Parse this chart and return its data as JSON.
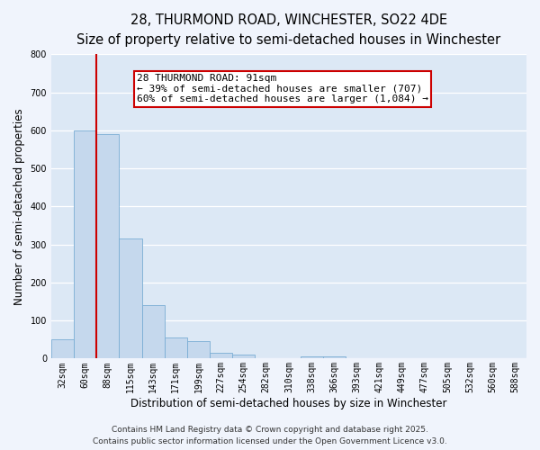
{
  "title_line1": "28, THURMOND ROAD, WINCHESTER, SO22 4DE",
  "title_line2": "Size of property relative to semi-detached houses in Winchester",
  "xlabel": "Distribution of semi-detached houses by size in Winchester",
  "ylabel": "Number of semi-detached properties",
  "bar_labels": [
    "32sqm",
    "60sqm",
    "88sqm",
    "115sqm",
    "143sqm",
    "171sqm",
    "199sqm",
    "227sqm",
    "254sqm",
    "282sqm",
    "310sqm",
    "338sqm",
    "366sqm",
    "393sqm",
    "421sqm",
    "449sqm",
    "477sqm",
    "505sqm",
    "532sqm",
    "560sqm",
    "588sqm"
  ],
  "bar_values": [
    50,
    600,
    590,
    315,
    140,
    55,
    45,
    15,
    10,
    0,
    0,
    5,
    5,
    0,
    0,
    0,
    0,
    0,
    0,
    0,
    0
  ],
  "bar_color": "#c5d8ed",
  "bar_edge_color": "#7aadd4",
  "vline_color": "#cc0000",
  "annotation_box_text": "28 THURMOND ROAD: 91sqm\n← 39% of semi-detached houses are smaller (707)\n60% of semi-detached houses are larger (1,084) →",
  "annotation_box_edgecolor": "#cc0000",
  "annotation_box_facecolor": "#ffffff",
  "ylim": [
    0,
    800
  ],
  "yticks": [
    0,
    100,
    200,
    300,
    400,
    500,
    600,
    700,
    800
  ],
  "plot_bg_color": "#dce8f5",
  "fig_bg_color": "#f0f4fc",
  "grid_color": "#ffffff",
  "footer_line1": "Contains HM Land Registry data © Crown copyright and database right 2025.",
  "footer_line2": "Contains public sector information licensed under the Open Government Licence v3.0.",
  "title_fontsize": 10.5,
  "subtitle_fontsize": 9,
  "axis_label_fontsize": 8.5,
  "tick_fontsize": 7,
  "annotation_fontsize": 8,
  "footer_fontsize": 6.5
}
